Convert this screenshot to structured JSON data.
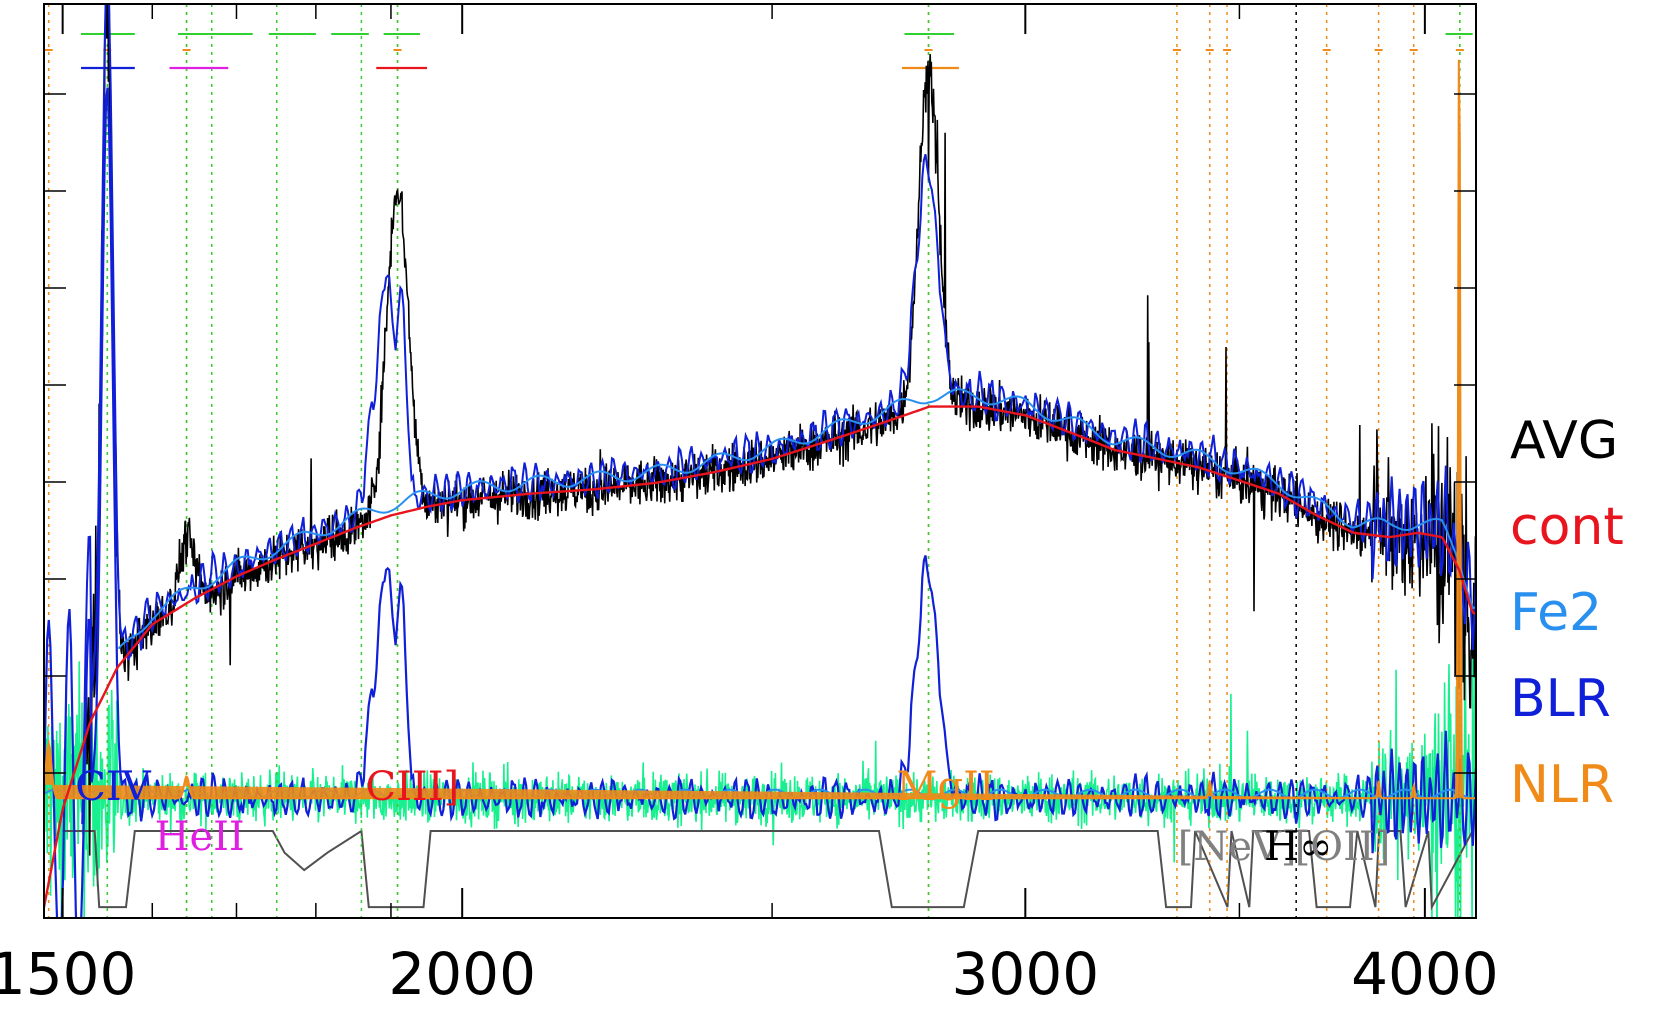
{
  "chart_data": {
    "type": "line",
    "title": "",
    "xlabel": "",
    "ylabel": "",
    "xlim": [
      1480,
      4150
    ],
    "ylim": [
      -0.55,
      3.65
    ],
    "x_ticks": [
      1500,
      2000,
      3000,
      4000
    ],
    "x_tick_labels": [
      "1500",
      "2000",
      "3000",
      "4000"
    ],
    "x_scale": "log",
    "grid": false,
    "legend_position": "right",
    "colors": {
      "AVG": "#000000",
      "cont": "#e8141e",
      "Fe2": "#2a90f0",
      "BLR": "#1020d8",
      "NLR": "#f08a18",
      "residual": "#18f090",
      "window": "#505050",
      "narrow_marker": "#f08a18",
      "broad_marker": "#30d030",
      "HeII": "#e020e0"
    },
    "legend": [
      {
        "name": "AVG",
        "color": "#000000"
      },
      {
        "name": "cont",
        "color": "#e8141e"
      },
      {
        "name": "Fe2",
        "color": "#2a90f0"
      },
      {
        "name": "BLR",
        "color": "#1020d8"
      },
      {
        "name": "NLR",
        "color": "#f08a18"
      }
    ],
    "line_labels": [
      {
        "text": "CIV",
        "x": 1549,
        "color": "#1020d8"
      },
      {
        "text": "HeII",
        "x": 1640,
        "color": "#e020e0"
      },
      {
        "text": "CIII]",
        "x": 1909,
        "color": "#e8141e"
      },
      {
        "text": "MgII",
        "x": 2798,
        "color": "#f08a18"
      },
      {
        "text": "[NeV]",
        "x": 3426,
        "color": "#808080"
      },
      {
        "text": "H∞",
        "x": 3646,
        "color": "#000000"
      },
      {
        "text": "[OII]",
        "x": 3727,
        "color": "#808080"
      }
    ],
    "narrow_lines": [
      1485,
      1549,
      1640,
      1909,
      2798,
      3346,
      3426,
      3469,
      3727,
      3869,
      3968,
      4102
    ],
    "broad_lines": [
      1549,
      1640,
      1670,
      1750,
      1860,
      1909,
      2798,
      4102
    ],
    "balmer_limit": 3646,
    "continuum": {
      "x": [
        1480,
        1500,
        1530,
        1560,
        1600,
        1650,
        1700,
        1750,
        1800,
        1850,
        1900,
        1950,
        2000,
        2100,
        2200,
        2300,
        2400,
        2500,
        2600,
        2700,
        2800,
        2900,
        3000,
        3100,
        3200,
        3300,
        3400,
        3500,
        3600,
        3700,
        3800,
        3900,
        3980,
        4050,
        4100,
        4140
      ],
      "y": [
        -0.5,
        -0.05,
        0.35,
        0.6,
        0.8,
        0.92,
        1.02,
        1.1,
        1.17,
        1.24,
        1.3,
        1.34,
        1.37,
        1.4,
        1.42,
        1.45,
        1.5,
        1.56,
        1.64,
        1.72,
        1.8,
        1.8,
        1.76,
        1.68,
        1.6,
        1.56,
        1.52,
        1.46,
        1.4,
        1.3,
        1.22,
        1.2,
        1.22,
        1.2,
        1.05,
        0.85
      ]
    },
    "avg_peaks": [
      {
        "x": 1549,
        "height": 3.2,
        "width": 6
      },
      {
        "x": 1640,
        "height": 0.3,
        "width": 9
      },
      {
        "x": 1909,
        "height": 1.5,
        "width": 15
      },
      {
        "x": 2798,
        "height": 1.55,
        "width": 20
      },
      {
        "x": 3869,
        "height": 0.2,
        "width": 10
      }
    ],
    "blr_peaks": [
      {
        "x": 1549,
        "height": 3.3,
        "width": 6
      },
      {
        "x": 1880,
        "height": 0.55,
        "width": 11
      },
      {
        "x": 1895,
        "height": 0.85,
        "width": 7
      },
      {
        "x": 1914,
        "height": 0.95,
        "width": 7
      },
      {
        "x": 2795,
        "height": 1.05,
        "width": 22
      }
    ],
    "nlr_spikes": [
      {
        "x": 1485,
        "height": 0.25
      },
      {
        "x": 1640,
        "height": 0.1
      },
      {
        "x": 3426,
        "height": 0.08
      },
      {
        "x": 3869,
        "height": 0.08
      },
      {
        "x": 3968,
        "height": 0.06
      },
      {
        "x": 4100,
        "height": 3.6
      }
    ],
    "fit_windows": [
      {
        "x": [
          1500,
          1535,
          1540,
          1570,
          1580,
          1610,
          1620,
          1665,
          1680,
          1745,
          1760,
          1785,
          1815,
          1860,
          1870,
          1945,
          1955,
          2700,
          2725,
          2870,
          2900,
          3300,
          3320,
          3380,
          3390,
          3470,
          3480,
          3525,
          3535,
          3680,
          3700,
          3790,
          3810,
          3860,
          3870,
          3930,
          3945,
          4010,
          4020,
          4140
        ],
        "y": [
          -0.15,
          -0.15,
          -0.5,
          -0.5,
          -0.15,
          -0.15,
          -0.15,
          -0.15,
          -0.15,
          -0.15,
          -0.25,
          -0.33,
          -0.25,
          -0.15,
          -0.5,
          -0.5,
          -0.15,
          -0.15,
          -0.5,
          -0.5,
          -0.15,
          -0.15,
          -0.5,
          -0.5,
          -0.15,
          -0.5,
          -0.15,
          -0.5,
          -0.15,
          -0.15,
          -0.5,
          -0.5,
          -0.15,
          -0.5,
          -0.15,
          -0.15,
          -0.5,
          -0.15,
          -0.5,
          -0.15
        ]
      }
    ]
  }
}
